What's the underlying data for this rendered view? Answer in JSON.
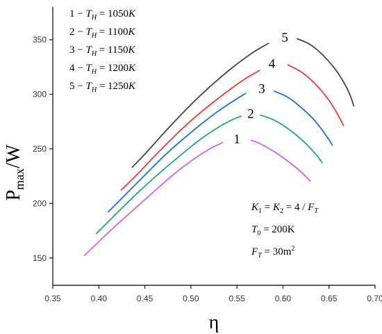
{
  "chart_data": {
    "type": "line",
    "title": "",
    "xlabel": "η",
    "ylabel_main": "P",
    "ylabel_sub": "max",
    "ylabel_unit": "/W",
    "xlim": [
      0.35,
      0.7
    ],
    "ylim": [
      125,
      380
    ],
    "x_ticks": [
      "0.35",
      "0.40",
      "0.45",
      "0.50",
      "0.55",
      "0.60",
      "0.65",
      "0.70"
    ],
    "x_tick_values": [
      0.35,
      0.4,
      0.45,
      0.5,
      0.55,
      0.6,
      0.65,
      0.7
    ],
    "y_ticks": [
      "150",
      "200",
      "250",
      "300",
      "350"
    ],
    "y_tick_values": [
      150,
      200,
      250,
      300,
      350
    ],
    "grid": false,
    "series": [
      {
        "name": "1",
        "color": "#cc66dd",
        "label_at": [
          0.55,
          259
        ],
        "x": [
          0.384,
          0.4,
          0.42,
          0.44,
          0.46,
          0.48,
          0.5,
          0.52,
          0.535,
          0.545,
          0.555,
          0.565,
          0.575,
          0.59,
          0.605,
          0.62,
          0.63
        ],
        "y": [
          152,
          165,
          181,
          196,
          211,
          226,
          239,
          250,
          256,
          259,
          260,
          258,
          255,
          248,
          239,
          229,
          220
        ]
      },
      {
        "name": "2",
        "color": "#20aa6e",
        "label_at": [
          0.565,
          282
        ],
        "x": [
          0.397,
          0.41,
          0.43,
          0.45,
          0.47,
          0.49,
          0.51,
          0.53,
          0.545,
          0.555,
          0.565,
          0.575,
          0.59,
          0.605,
          0.62,
          0.635,
          0.643
        ],
        "y": [
          172,
          183,
          200,
          216,
          231,
          245,
          259,
          270,
          277,
          280,
          282,
          281,
          277,
          269,
          259,
          246,
          237
        ]
      },
      {
        "name": "3",
        "color": "#1e6fd0",
        "label_at": [
          0.577,
          305
        ],
        "x": [
          0.41,
          0.43,
          0.45,
          0.47,
          0.49,
          0.51,
          0.53,
          0.55,
          0.56,
          0.57,
          0.58,
          0.59,
          0.605,
          0.62,
          0.635,
          0.648,
          0.654
        ],
        "y": [
          192,
          209,
          226,
          243,
          258,
          272,
          285,
          296,
          301,
          304,
          305,
          303,
          298,
          288,
          276,
          261,
          253
        ]
      },
      {
        "name": "4",
        "color": "#ee3a3a",
        "label_at": [
          0.588,
          328
        ],
        "x": [
          0.424,
          0.44,
          0.46,
          0.48,
          0.5,
          0.52,
          0.54,
          0.56,
          0.575,
          0.585,
          0.595,
          0.605,
          0.62,
          0.635,
          0.65,
          0.66,
          0.666
        ],
        "y": [
          212,
          225,
          243,
          260,
          276,
          290,
          303,
          315,
          322,
          326,
          328,
          327,
          321,
          310,
          295,
          281,
          271
        ]
      },
      {
        "name": "5",
        "color": "#444444",
        "label_at": [
          0.602,
          352
        ],
        "x": [
          0.436,
          0.45,
          0.47,
          0.49,
          0.51,
          0.53,
          0.55,
          0.57,
          0.585,
          0.595,
          0.605,
          0.615,
          0.63,
          0.645,
          0.66,
          0.672,
          0.677
        ],
        "y": [
          233,
          245,
          264,
          282,
          299,
          314,
          328,
          340,
          347,
          350,
          352,
          351,
          346,
          335,
          320,
          302,
          289
        ]
      }
    ],
    "legend": {
      "placement": "top-left",
      "entries": [
        {
          "prefix": "1 − ",
          "var": "T",
          "sub": "H",
          "value": " = 1050",
          "unit": "K"
        },
        {
          "prefix": "2 − ",
          "var": "T",
          "sub": "H",
          "value": " = 1100",
          "unit": "K"
        },
        {
          "prefix": "3 − ",
          "var": "T",
          "sub": "H",
          "value": " = 1150",
          "unit": "K"
        },
        {
          "prefix": "4 − ",
          "var": "T",
          "sub": "H",
          "value": " = 1200",
          "unit": "K"
        },
        {
          "prefix": "5 − ",
          "var": "T",
          "sub": "H",
          "value": " = 1250",
          "unit": "K"
        }
      ]
    },
    "annotations": [
      {
        "text": "K₁ = K₂ = 4 / F_T"
      },
      {
        "text": "T₀ = 200K"
      },
      {
        "text": "F_T = 30m²"
      }
    ]
  }
}
